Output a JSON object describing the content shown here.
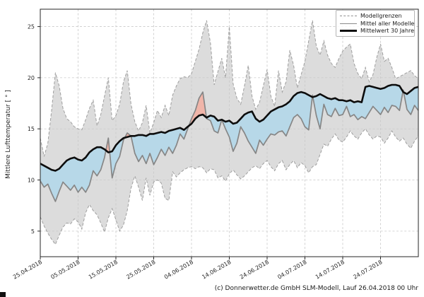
{
  "figure": {
    "caption": "(c) Donnerwetter.de GmbH SLM-Modell, Lauf 26.04.2018 00 Uhr"
  },
  "chart_data": {
    "type": "line",
    "title": "",
    "xlabel": "",
    "ylabel": "Mittlere Lufttemperatur [ ° ]",
    "grid": true,
    "legend_position": "upper right",
    "x_tick_labels": [
      "25.04.2018",
      "05.05.2018",
      "15.05.2018",
      "25.05.2018",
      "04.06.2018",
      "14.06.2018",
      "24.06.2018",
      "04.07.2018",
      "14.07.2018",
      "24.07.2018"
    ],
    "x_tick_positions_days": [
      0,
      10,
      20,
      30,
      40,
      50,
      60,
      70,
      80,
      90
    ],
    "x_range_days": [
      0,
      100
    ],
    "x_unit": "Tage ab 25.04.2018 (taegliche Werte)",
    "y_ticks": [
      5,
      10,
      15,
      20,
      25
    ],
    "ylim": [
      2.5,
      26.7
    ],
    "legend": [
      {
        "label": "Modellgrenzen",
        "style": "dashed-gray"
      },
      {
        "label": "Mittel aller Modelle",
        "style": "solid-gray"
      },
      {
        "label": "Mittelwert 30 Jahre",
        "style": "thick-black"
      }
    ],
    "colors": {
      "band_fill": "#dcdcdc",
      "band_edge": "#9e9e9e",
      "model_mean_line": "#868686",
      "mean30_line": "#0d0d0d",
      "warmer_fill": "#f0b5a9",
      "colder_fill": "#b7d8e8",
      "grid": "#c9c9c9",
      "frame": "#262626"
    },
    "series": [
      {
        "name": "Modellgrenzen (oberes Limit)",
        "values": [
          14.1,
          12.3,
          13.6,
          16.8,
          20.5,
          19.2,
          17.0,
          16.0,
          15.7,
          15.2,
          15.0,
          14.9,
          15.9,
          17.0,
          17.8,
          15.3,
          16.4,
          18.2,
          20.0,
          15.8,
          16.3,
          17.4,
          19.6,
          20.7,
          17.4,
          15.7,
          14.8,
          15.6,
          17.3,
          14.6,
          15.6,
          16.8,
          16.1,
          17.3,
          16.3,
          18.3,
          19.2,
          19.9,
          20.1,
          20.0,
          20.4,
          21.6,
          22.8,
          24.4,
          25.6,
          23.4,
          19.3,
          20.6,
          21.9,
          20.0,
          25.0,
          19.4,
          18.0,
          17.4,
          19.2,
          21.2,
          18.2,
          16.9,
          17.6,
          19.2,
          20.8,
          18.2,
          17.2,
          20.7,
          18.6,
          19.6,
          22.7,
          21.2,
          19.0,
          20.3,
          21.6,
          23.6,
          25.6,
          23.1,
          22.2,
          23.6,
          22.2,
          21.4,
          21.0,
          21.9,
          22.6,
          23.0,
          23.3,
          21.4,
          20.4,
          19.9,
          21.0,
          19.6,
          20.3,
          22.0,
          23.3,
          21.6,
          21.9,
          21.0,
          19.9,
          20.1,
          20.3,
          20.5,
          20.7,
          20.2,
          19.9
        ]
      },
      {
        "name": "Modellgrenzen (unteres Limit)",
        "values": [
          6.4,
          5.5,
          4.8,
          4.2,
          3.7,
          4.6,
          5.4,
          5.8,
          5.7,
          6.2,
          5.9,
          5.2,
          6.8,
          7.6,
          7.0,
          6.6,
          5.8,
          4.9,
          6.3,
          7.2,
          6.1,
          5.0,
          5.6,
          7.0,
          9.2,
          10.4,
          9.3,
          8.0,
          10.2,
          8.5,
          9.8,
          10.0,
          9.7,
          8.2,
          8.0,
          10.8,
          10.3,
          10.7,
          11.0,
          11.2,
          11.3,
          11.1,
          11.3,
          11.2,
          10.7,
          11.1,
          11.0,
          10.2,
          10.4,
          9.9,
          10.6,
          11.0,
          10.5,
          10.1,
          10.4,
          10.8,
          11.2,
          11.4,
          11.1,
          11.6,
          11.9,
          11.3,
          10.9,
          11.6,
          11.9,
          11.0,
          11.5,
          11.9,
          11.2,
          11.7,
          11.4,
          10.7,
          11.3,
          11.5,
          12.5,
          13.5,
          13.3,
          14.0,
          14.5,
          13.9,
          13.7,
          14.2,
          14.8,
          14.3,
          14.0,
          14.6,
          15.0,
          14.4,
          14.0,
          14.3,
          14.2,
          13.6,
          14.1,
          14.8,
          14.2,
          13.8,
          14.1,
          13.5,
          13.1,
          13.8,
          14.3
        ]
      },
      {
        "name": "Mittel aller Modelle",
        "values": [
          9.9,
          9.3,
          9.6,
          8.7,
          7.9,
          8.9,
          9.8,
          9.4,
          9.0,
          9.5,
          8.8,
          9.3,
          8.8,
          9.5,
          10.9,
          10.4,
          11.0,
          12.2,
          14.1,
          10.2,
          11.6,
          12.3,
          13.9,
          14.6,
          14.3,
          12.6,
          11.8,
          12.4,
          11.6,
          12.6,
          11.5,
          12.2,
          13.0,
          12.4,
          13.2,
          12.6,
          13.4,
          14.5,
          14.0,
          15.0,
          16.0,
          16.8,
          18.0,
          18.6,
          16.0,
          15.8,
          14.8,
          14.6,
          15.9,
          15.0,
          14.2,
          12.8,
          13.6,
          15.2,
          14.6,
          13.8,
          13.2,
          12.6,
          13.9,
          13.4,
          14.0,
          14.5,
          14.4,
          14.7,
          14.8,
          14.3,
          15.2,
          16.1,
          16.4,
          16.0,
          15.2,
          14.9,
          18.3,
          16.3,
          15.0,
          17.4,
          16.4,
          16.2,
          17.0,
          16.3,
          16.4,
          17.2,
          16.2,
          16.4,
          15.9,
          16.2,
          16.0,
          16.6,
          17.2,
          16.8,
          16.4,
          17.1,
          16.6,
          17.3,
          17.2,
          16.8,
          18.8,
          16.9,
          16.4,
          17.3,
          16.8
        ]
      },
      {
        "name": "Mittelwert 30 Jahre",
        "values": [
          11.6,
          11.4,
          11.2,
          11.0,
          10.9,
          11.1,
          11.5,
          11.9,
          12.1,
          12.2,
          12.0,
          11.9,
          12.2,
          12.7,
          13.0,
          13.2,
          13.2,
          13.0,
          12.7,
          12.8,
          13.4,
          13.8,
          14.1,
          14.2,
          14.3,
          14.3,
          14.4,
          14.4,
          14.3,
          14.5,
          14.5,
          14.6,
          14.7,
          14.6,
          14.8,
          14.9,
          15.0,
          15.1,
          14.9,
          15.2,
          15.5,
          16.0,
          16.3,
          16.4,
          16.1,
          16.3,
          16.2,
          15.8,
          15.9,
          15.7,
          15.8,
          15.5,
          15.6,
          16.0,
          16.4,
          16.6,
          16.7,
          16.0,
          15.7,
          15.9,
          16.3,
          16.7,
          16.9,
          17.1,
          17.2,
          17.4,
          17.7,
          18.2,
          18.5,
          18.6,
          18.5,
          18.3,
          18.1,
          18.2,
          18.4,
          18.2,
          18.0,
          17.9,
          18.0,
          17.8,
          17.8,
          17.7,
          17.8,
          17.6,
          17.7,
          17.6,
          19.1,
          19.2,
          19.1,
          19.0,
          18.9,
          19.0,
          19.2,
          19.3,
          19.3,
          19.2,
          18.6,
          18.4,
          18.7,
          19.0,
          19.1
        ]
      }
    ]
  }
}
